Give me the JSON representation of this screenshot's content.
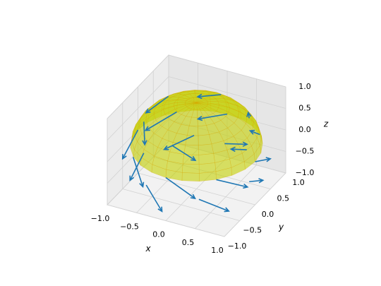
{
  "chart_data": {
    "type": "quiver3d",
    "x_label": "x",
    "y_label": "y",
    "z_label": "z",
    "xlim": [
      -1,
      1
    ],
    "ylim": [
      -1,
      1
    ],
    "zlim": [
      -1,
      1
    ],
    "xticks": [
      {
        "value": -1,
        "label": "−1.0"
      },
      {
        "value": -0.5,
        "label": "−0.5"
      },
      {
        "value": 0,
        "label": "0.0"
      },
      {
        "value": 0.5,
        "label": "0.5"
      },
      {
        "value": 1,
        "label": "1.0"
      }
    ],
    "yticks": [
      {
        "value": -1,
        "label": "−1.0"
      },
      {
        "value": -0.5,
        "label": "−0.5"
      },
      {
        "value": 0,
        "label": "0.0"
      },
      {
        "value": 0.5,
        "label": "0.5"
      },
      {
        "value": 1,
        "label": "1.0"
      }
    ],
    "zticks": [
      {
        "value": -1,
        "label": "−1.0"
      },
      {
        "value": -0.5,
        "label": "−0.5"
      },
      {
        "value": 0,
        "label": "0.0"
      },
      {
        "value": 0.5,
        "label": "0.5"
      },
      {
        "value": 1,
        "label": "1.0"
      }
    ],
    "grid": true,
    "arrow_color": "#1f77b4",
    "surface_color": "#c3d000",
    "arrows": [
      {
        "x": 1,
        "y": 0,
        "z": 0,
        "u": 0,
        "v": 0.5,
        "w": -0.3
      },
      {
        "x": 0.71,
        "y": 0.71,
        "z": 0,
        "u": -0.35,
        "v": 0.35,
        "w": -0.3
      },
      {
        "x": 0,
        "y": 1,
        "z": 0,
        "u": -0.5,
        "v": 0,
        "w": -0.3
      },
      {
        "x": -0.71,
        "y": 0.71,
        "z": 0,
        "u": -0.35,
        "v": -0.35,
        "w": -0.3
      },
      {
        "x": -1,
        "y": 0,
        "z": 0,
        "u": 0,
        "v": -0.5,
        "w": -0.3
      },
      {
        "x": -0.71,
        "y": -0.71,
        "z": 0,
        "u": 0.35,
        "v": -0.35,
        "w": -0.3
      },
      {
        "x": 0,
        "y": -1,
        "z": 0,
        "u": 0.5,
        "v": 0,
        "w": -0.3
      },
      {
        "x": 0.71,
        "y": -0.71,
        "z": 0,
        "u": 0.35,
        "v": 0.35,
        "w": -0.3
      },
      {
        "x": 0.69,
        "y": 0.4,
        "z": 0.6,
        "u": -0.2,
        "v": 0.35,
        "w": -0.2
      },
      {
        "x": 0,
        "y": 0.8,
        "z": 0.6,
        "u": -0.4,
        "v": 0,
        "w": -0.2
      },
      {
        "x": -0.69,
        "y": 0.4,
        "z": 0.6,
        "u": -0.2,
        "v": -0.35,
        "w": -0.2
      },
      {
        "x": -0.69,
        "y": -0.4,
        "z": 0.6,
        "u": 0.2,
        "v": -0.35,
        "w": -0.2
      },
      {
        "x": 0,
        "y": -0.8,
        "z": 0.6,
        "u": 0.4,
        "v": 0,
        "w": -0.2
      },
      {
        "x": 0.69,
        "y": -0.4,
        "z": 0.6,
        "u": 0.2,
        "v": 0.35,
        "w": -0.2
      },
      {
        "x": 0.9,
        "y": 0,
        "z": -0.5,
        "u": 0,
        "v": 0.45,
        "w": -0.3
      },
      {
        "x": 0.45,
        "y": 0.78,
        "z": -0.5,
        "u": -0.39,
        "v": 0.23,
        "w": -0.3
      },
      {
        "x": -0.45,
        "y": 0.78,
        "z": -0.5,
        "u": -0.39,
        "v": -0.23,
        "w": -0.3
      },
      {
        "x": -0.9,
        "y": 0,
        "z": -0.5,
        "u": 0,
        "v": -0.45,
        "w": -0.3
      },
      {
        "x": -0.45,
        "y": -0.78,
        "z": -0.5,
        "u": 0.39,
        "v": -0.23,
        "w": -0.3
      },
      {
        "x": 0.45,
        "y": -0.78,
        "z": -0.5,
        "u": 0.39,
        "v": 0.23,
        "w": -0.3
      }
    ]
  }
}
